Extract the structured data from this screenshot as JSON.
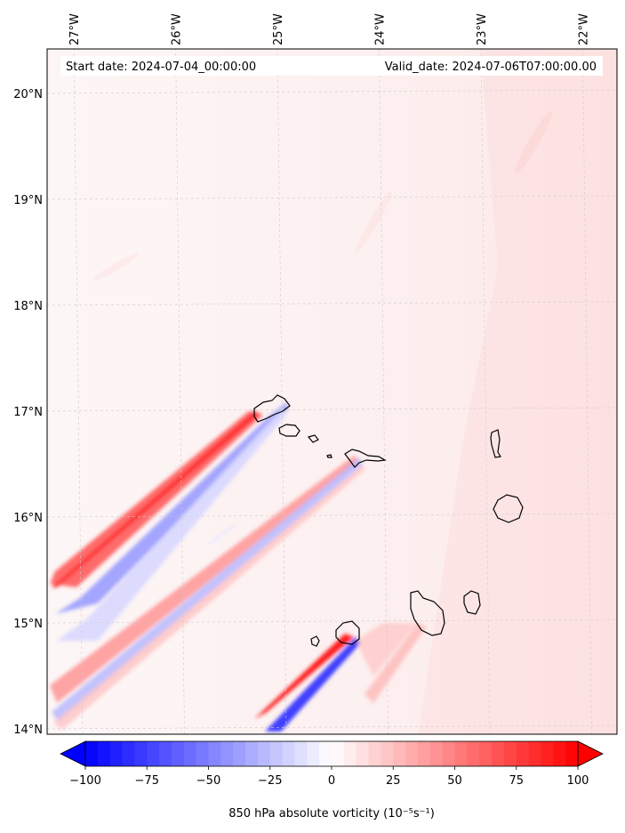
{
  "map": {
    "start_date": "Start date: 2024-07-04_00:00:00",
    "valid_date": "Valid_date: 2024-07-06T07:00:00.00",
    "lon_labels": [
      "27°W",
      "26°W",
      "25°W",
      "24°W",
      "23°W",
      "22°W"
    ],
    "lat_labels": [
      "20°N",
      "19°N",
      "18°N",
      "17°N",
      "16°N",
      "15°N",
      "14°N"
    ],
    "lon_values": [
      -27,
      -26,
      -25,
      -24,
      -23,
      -22
    ],
    "lat_values": [
      20,
      19,
      18,
      17,
      16,
      15,
      14
    ],
    "extent": {
      "lon_min": -27.35,
      "lon_max": -21.75,
      "lat_min": 13.95,
      "lat_max": 20.42
    },
    "islands": [
      "Santo Antão",
      "São Vicente",
      "Santa Luzia",
      "São Nicolau",
      "Sal",
      "Boa Vista",
      "Maio",
      "Santiago",
      "Fogo",
      "Brava"
    ]
  },
  "colorbar": {
    "label": "850 hPa absolute vorticity (10⁻⁵s⁻¹)",
    "tick_labels": [
      "−100",
      "−75",
      "−50",
      "−25",
      "0",
      "25",
      "50",
      "75",
      "100"
    ],
    "tick_values": [
      -100,
      -75,
      -50,
      -25,
      0,
      25,
      50,
      75,
      100
    ],
    "min": -100,
    "max": 100,
    "extend": "both",
    "colors": {
      "negative": "#0000ff",
      "neutral": "#ffffff",
      "positive": "#ff0000"
    }
  },
  "colors": {
    "background_tint": "#fde9e9",
    "grid": "#cccccc",
    "coast": "#000000"
  }
}
